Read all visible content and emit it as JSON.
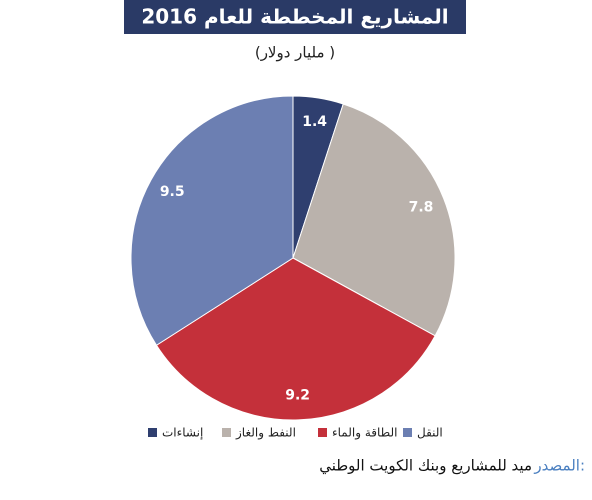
{
  "chart_data": {
    "type": "pie",
    "title": "المشاريع المخططة للعام 2016",
    "subtitle": "(مليار دولار )",
    "categories": [
      "إنشاءات",
      "النفط والغاز",
      "الطاقة والماء",
      "النقل"
    ],
    "values": [
      1.4,
      7.8,
      9.2,
      9.5
    ],
    "colors": [
      "#2f3f6f",
      "#bab2ac",
      "#c4303a",
      "#6c7fb2"
    ]
  },
  "source": {
    "label": "المصدر:",
    "text": "ميد للمشاريع وبنك الكويت الوطني"
  }
}
